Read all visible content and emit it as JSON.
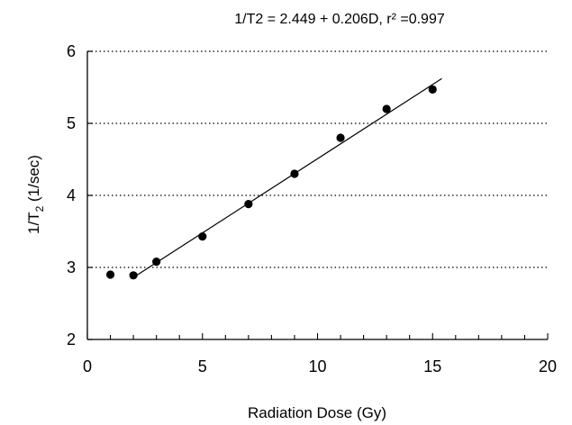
{
  "chart_data": {
    "type": "scatter",
    "title": "1/T2 = 2.449 + 0.206D,      r² =0.997",
    "xlabel": "Radiation Dose (Gy)",
    "ylabel": {
      "prefix": "1/T",
      "sub": "2",
      "suffix": " (1/sec)"
    },
    "xlim": [
      0,
      20
    ],
    "ylim": [
      2,
      6
    ],
    "xticks": [
      0,
      5,
      10,
      15,
      20
    ],
    "yticks": [
      2,
      3,
      4,
      5,
      6
    ],
    "x_minor_step": 1,
    "grid": {
      "y": true,
      "x": false,
      "style": "dotted"
    },
    "series": [
      {
        "points": [
          {
            "x": 1,
            "y": 2.9
          },
          {
            "x": 2,
            "y": 2.89
          },
          {
            "x": 3,
            "y": 3.08
          },
          {
            "x": 5,
            "y": 3.43
          },
          {
            "x": 7,
            "y": 3.88
          },
          {
            "x": 9,
            "y": 4.3
          },
          {
            "x": 11,
            "y": 4.8
          },
          {
            "x": 13,
            "y": 5.2
          },
          {
            "x": 15,
            "y": 5.47
          }
        ]
      }
    ],
    "fit_line": {
      "intercept": 2.449,
      "slope": 0.206,
      "x_start": 1.9,
      "x_end": 15.4
    }
  }
}
